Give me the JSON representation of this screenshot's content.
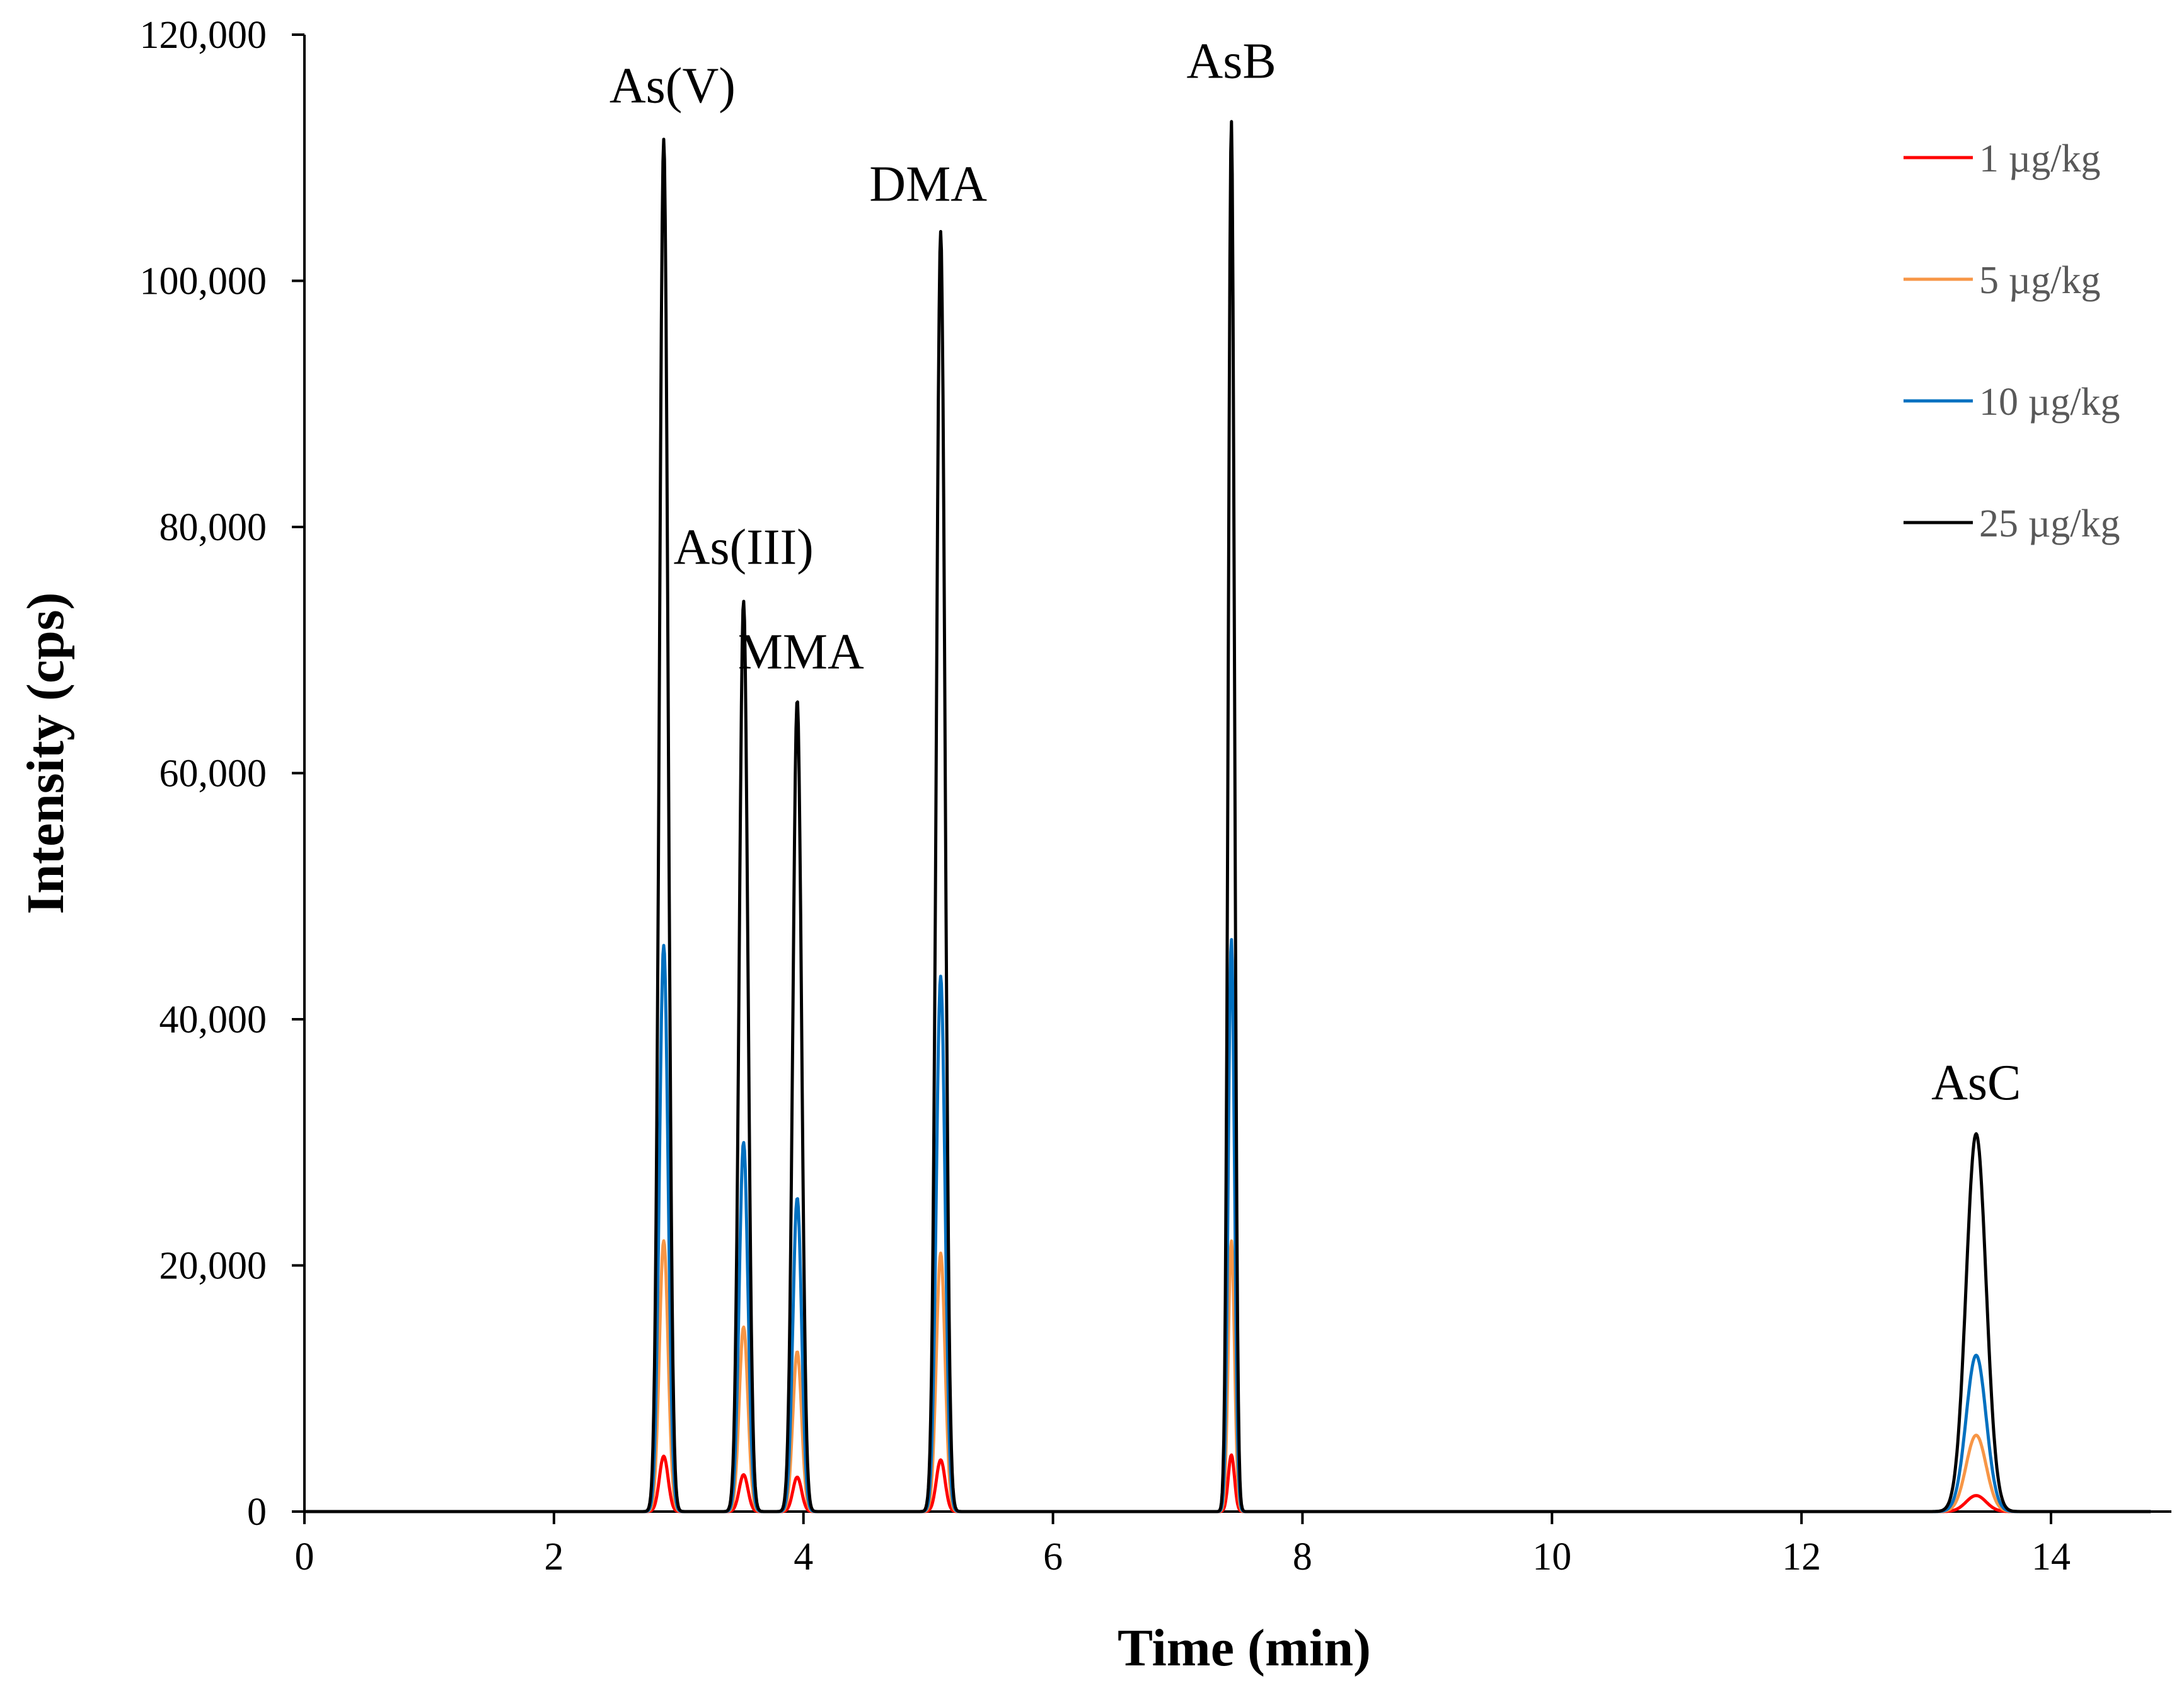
{
  "chart_data": {
    "type": "line",
    "title": "",
    "xlabel": "Time (min)",
    "ylabel": "Intensity (cps)",
    "xlim": [
      0,
      14.8
    ],
    "ylim": [
      0,
      120000
    ],
    "x_ticks": [
      0,
      2,
      4,
      6,
      8,
      10,
      12,
      14
    ],
    "x_tick_labels": [
      "0",
      "2",
      "4",
      "6",
      "8",
      "10",
      "12",
      "14"
    ],
    "y_ticks": [
      0,
      20000,
      40000,
      60000,
      80000,
      100000,
      120000
    ],
    "y_tick_labels": [
      "0",
      "20,000",
      "40,000",
      "60,000",
      "80,000",
      "100,000",
      "120,000"
    ],
    "grid": false,
    "legend_position": "top-right",
    "peaks": [
      {
        "name": "As(V)",
        "rt": 2.88,
        "width": 0.035
      },
      {
        "name": "As(III)",
        "rt": 3.52,
        "width": 0.035
      },
      {
        "name": "MMA",
        "rt": 3.95,
        "width": 0.035
      },
      {
        "name": "DMA",
        "rt": 5.1,
        "width": 0.035
      },
      {
        "name": "AsB",
        "rt": 7.43,
        "width": 0.025
      },
      {
        "name": "AsC",
        "rt": 13.4,
        "width": 0.08
      }
    ],
    "series": [
      {
        "name": "1 µg/kg",
        "color": "#ff0000",
        "peak_heights": [
          4500,
          3000,
          2800,
          4200,
          4600,
          1300
        ]
      },
      {
        "name": "5 µg/kg",
        "color": "#f79646",
        "peak_heights": [
          22000,
          15000,
          13000,
          21000,
          22000,
          6200
        ]
      },
      {
        "name": "10 µg/kg",
        "color": "#0070c0",
        "peak_heights": [
          46000,
          30000,
          25500,
          43500,
          46500,
          12700
        ]
      },
      {
        "name": "25 µg/kg",
        "color": "#000000",
        "peak_heights": [
          111500,
          74000,
          66000,
          104000,
          113000,
          30700
        ]
      }
    ],
    "annotations": [
      {
        "text": "As(V)",
        "x": 2.95,
        "y": 114500
      },
      {
        "text": "As(III)",
        "x": 3.52,
        "y": 77000
      },
      {
        "text": "MMA",
        "x": 3.98,
        "y": 68500
      },
      {
        "text": "DMA",
        "x": 5.0,
        "y": 106500
      },
      {
        "text": "AsB",
        "x": 7.43,
        "y": 116500
      },
      {
        "text": "AsC",
        "x": 13.4,
        "y": 33500
      }
    ]
  }
}
